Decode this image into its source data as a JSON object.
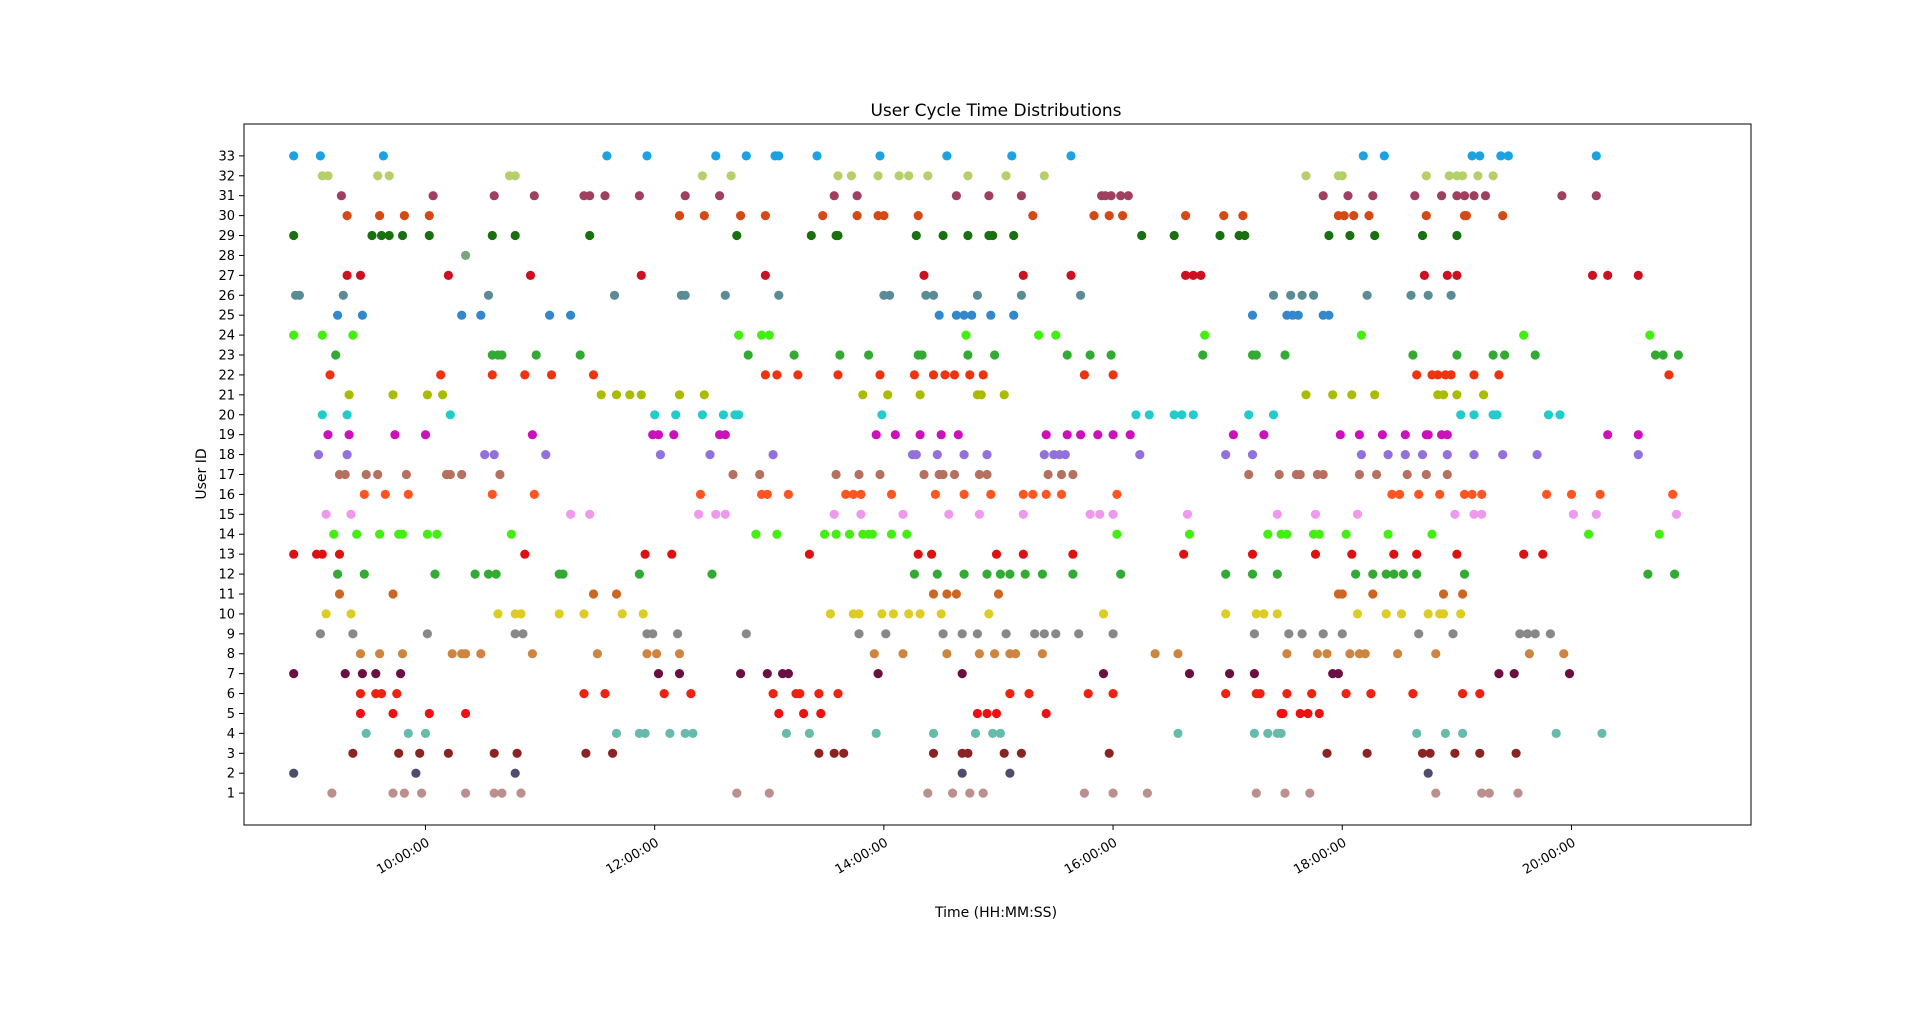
{
  "chart_data": {
    "type": "scatter",
    "title": "User Cycle Time Distributions",
    "xlabel": "Time (HH:MM:SS)",
    "ylabel": "User ID",
    "x_ticks": [
      "10:00:00",
      "12:00:00",
      "14:00:00",
      "16:00:00",
      "18:00:00",
      "20:00:00"
    ],
    "xlim": [
      "08:25:00",
      "21:34:00"
    ],
    "ylim": [
      -0.6,
      34.6
    ],
    "y_ticks": [
      1,
      2,
      3,
      4,
      5,
      6,
      7,
      8,
      9,
      10,
      11,
      12,
      13,
      14,
      15,
      16,
      17,
      18,
      19,
      20,
      21,
      22,
      23,
      24,
      25,
      26,
      27,
      28,
      29,
      30,
      31,
      32,
      33
    ],
    "grid": false,
    "legend": "none",
    "series": [
      {
        "user": 1,
        "color": "#bc8f8f",
        "times": [
          "09:11",
          "09:43",
          "09:49",
          "09:58",
          "10:21",
          "10:36",
          "10:40",
          "10:50",
          "12:43",
          "13:00",
          "14:23",
          "14:36",
          "14:45",
          "14:52",
          "15:45",
          "16:00",
          "16:18",
          "17:15",
          "17:30",
          "17:43",
          "18:49",
          "19:13",
          "19:17",
          "19:32"
        ]
      },
      {
        "user": 2,
        "color": "#4d4d6d",
        "times": [
          "08:51",
          "09:55",
          "10:47",
          "14:41",
          "15:06",
          "18:45"
        ]
      },
      {
        "user": 3,
        "color": "#8b2323",
        "times": [
          "09:22",
          "09:46",
          "09:57",
          "10:12",
          "10:36",
          "10:48",
          "11:24",
          "11:38",
          "13:26",
          "13:34",
          "13:39",
          "14:26",
          "14:41",
          "14:44",
          "15:03",
          "15:12",
          "15:58",
          "17:52",
          "18:13",
          "18:42",
          "18:46",
          "18:59",
          "19:12",
          "19:31"
        ]
      },
      {
        "user": 4,
        "color": "#66bbaa",
        "times": [
          "09:29",
          "09:51",
          "10:00",
          "11:40",
          "11:52",
          "11:55",
          "12:08",
          "12:16",
          "12:20",
          "13:09",
          "13:21",
          "13:56",
          "14:26",
          "14:48",
          "14:57",
          "15:01",
          "16:34",
          "17:14",
          "17:21",
          "17:26",
          "17:28",
          "18:39",
          "18:54",
          "19:03",
          "19:52",
          "20:16"
        ]
      },
      {
        "user": 5,
        "color": "#ee1111",
        "times": [
          "09:26",
          "09:43",
          "10:02",
          "10:21",
          "13:05",
          "13:18",
          "13:27",
          "14:49",
          "14:54",
          "14:59",
          "15:25",
          "17:28",
          "17:29",
          "17:38",
          "17:42",
          "17:48"
        ]
      },
      {
        "user": 6,
        "color": "#ee2211",
        "times": [
          "09:26",
          "09:34",
          "09:37",
          "09:45",
          "11:23",
          "11:34",
          "12:05",
          "12:19",
          "13:02",
          "13:14",
          "13:16",
          "13:26",
          "13:36",
          "15:06",
          "15:16",
          "15:47",
          "16:00",
          "16:59",
          "17:15",
          "17:17",
          "17:31",
          "17:44",
          "18:02",
          "18:15",
          "18:37",
          "19:03",
          "19:12"
        ]
      },
      {
        "user": 7,
        "color": "#6a1040",
        "times": [
          "08:51",
          "09:18",
          "09:27",
          "09:34",
          "09:47",
          "12:02",
          "12:13",
          "12:45",
          "12:59",
          "13:07",
          "13:10",
          "13:57",
          "14:41",
          "15:55",
          "16:40",
          "17:01",
          "17:14",
          "17:55",
          "17:58",
          "19:22",
          "19:30",
          "19:59"
        ]
      },
      {
        "user": 8,
        "color": "#cd853f",
        "times": [
          "09:26",
          "09:36",
          "09:48",
          "10:14",
          "10:19",
          "10:21",
          "10:29",
          "10:56",
          "11:30",
          "11:56",
          "12:01",
          "12:13",
          "13:55",
          "14:10",
          "14:33",
          "14:50",
          "14:58",
          "15:06",
          "15:09",
          "15:23",
          "16:22",
          "16:34",
          "17:31",
          "17:47",
          "17:52",
          "18:04",
          "18:09",
          "18:12",
          "18:29",
          "18:49",
          "19:38",
          "19:56"
        ]
      },
      {
        "user": 9,
        "color": "#888888",
        "times": [
          "09:05",
          "09:22",
          "10:01",
          "10:47",
          "10:51",
          "11:56",
          "11:59",
          "12:12",
          "12:48",
          "13:47",
          "14:01",
          "14:31",
          "14:41",
          "14:49",
          "15:04",
          "15:19",
          "15:24",
          "15:30",
          "15:42",
          "16:00",
          "17:14",
          "17:32",
          "17:39",
          "17:50",
          "18:00",
          "18:40",
          "18:58",
          "19:33",
          "19:37",
          "19:41",
          "19:49"
        ]
      },
      {
        "user": 10,
        "color": "#ddcc22",
        "times": [
          "09:08",
          "09:21",
          "10:38",
          "10:47",
          "10:50",
          "11:10",
          "11:23",
          "11:43",
          "11:54",
          "13:32",
          "13:44",
          "13:47",
          "13:59",
          "14:05",
          "14:13",
          "14:19",
          "14:30",
          "14:55",
          "15:55",
          "16:59",
          "17:15",
          "17:19",
          "17:26",
          "18:08",
          "18:23",
          "18:31",
          "18:45",
          "18:51",
          "18:53",
          "19:02"
        ]
      },
      {
        "user": 11,
        "color": "#cc6622",
        "times": [
          "09:15",
          "09:43",
          "11:28",
          "11:40",
          "14:26",
          "14:33",
          "14:38",
          "15:00",
          "17:58",
          "18:00",
          "18:16",
          "18:53",
          "19:03"
        ]
      },
      {
        "user": 12,
        "color": "#33aa33",
        "times": [
          "09:14",
          "09:28",
          "10:05",
          "10:26",
          "10:33",
          "10:37",
          "11:10",
          "11:12",
          "11:52",
          "12:30",
          "14:16",
          "14:28",
          "14:42",
          "14:54",
          "15:01",
          "15:06",
          "15:14",
          "15:23",
          "15:39",
          "16:04",
          "16:59",
          "17:13",
          "17:26",
          "18:07",
          "18:16",
          "18:23",
          "18:27",
          "18:32",
          "18:39",
          "19:04",
          "20:40",
          "20:54"
        ]
      },
      {
        "user": 13,
        "color": "#dd1111",
        "times": [
          "08:51",
          "09:03",
          "09:06",
          "09:15",
          "10:52",
          "11:55",
          "12:09",
          "13:21",
          "14:18",
          "14:25",
          "14:59",
          "15:13",
          "15:39",
          "16:37",
          "17:13",
          "17:46",
          "18:05",
          "18:27",
          "18:39",
          "19:00",
          "19:35",
          "19:45"
        ]
      },
      {
        "user": 14,
        "color": "#44ee11",
        "times": [
          "09:12",
          "09:24",
          "09:36",
          "09:46",
          "09:48",
          "10:01",
          "10:06",
          "10:45",
          "12:53",
          "13:04",
          "13:29",
          "13:35",
          "13:42",
          "13:49",
          "13:52",
          "13:54",
          "14:04",
          "14:12",
          "16:02",
          "16:40",
          "17:21",
          "17:28",
          "17:31",
          "17:45",
          "17:48",
          "18:02",
          "18:24",
          "18:47",
          "20:09",
          "20:46"
        ]
      },
      {
        "user": 15,
        "color": "#ee99ee",
        "times": [
          "09:08",
          "09:21",
          "11:16",
          "11:26",
          "12:23",
          "12:32",
          "12:37",
          "13:34",
          "13:48",
          "14:10",
          "14:34",
          "14:50",
          "15:13",
          "15:48",
          "15:53",
          "16:00",
          "16:39",
          "17:26",
          "17:46",
          "18:08",
          "18:59",
          "19:09",
          "19:13",
          "20:01",
          "20:13",
          "20:55"
        ]
      },
      {
        "user": 16,
        "color": "#ff5522",
        "times": [
          "09:28",
          "09:39",
          "09:51",
          "10:35",
          "10:57",
          "12:24",
          "12:56",
          "12:59",
          "13:10",
          "13:40",
          "13:44",
          "13:48",
          "14:04",
          "14:27",
          "14:42",
          "14:56",
          "15:13",
          "15:18",
          "15:25",
          "15:33",
          "16:02",
          "18:26",
          "18:30",
          "18:40",
          "18:51",
          "19:04",
          "19:08",
          "19:13",
          "19:47",
          "20:00",
          "20:15",
          "20:53"
        ]
      },
      {
        "user": 17,
        "color": "#b57060",
        "times": [
          "09:15",
          "09:18",
          "09:29",
          "09:35",
          "09:50",
          "10:11",
          "10:13",
          "10:19",
          "10:39",
          "12:41",
          "12:55",
          "13:35",
          "13:47",
          "13:58",
          "14:21",
          "14:29",
          "14:31",
          "14:37",
          "14:50",
          "14:54",
          "15:26",
          "15:33",
          "15:39",
          "17:11",
          "17:27",
          "17:36",
          "17:38",
          "17:47",
          "17:50",
          "18:09",
          "18:18",
          "18:34",
          "18:44",
          "18:55"
        ]
      },
      {
        "user": 18,
        "color": "#9370db",
        "times": [
          "09:04",
          "09:19",
          "10:31",
          "10:36",
          "11:03",
          "12:03",
          "12:29",
          "13:02",
          "14:15",
          "14:17",
          "14:28",
          "14:42",
          "14:54",
          "15:24",
          "15:29",
          "15:32",
          "15:35",
          "16:14",
          "16:59",
          "17:13",
          "18:10",
          "18:24",
          "18:33",
          "18:42",
          "18:55",
          "19:09",
          "19:24",
          "19:42",
          "20:35"
        ]
      },
      {
        "user": 19,
        "color": "#cc11bb",
        "times": [
          "09:09",
          "09:20",
          "09:44",
          "10:00",
          "10:56",
          "11:59",
          "12:02",
          "12:10",
          "12:34",
          "12:37",
          "13:56",
          "14:06",
          "14:19",
          "14:30",
          "14:39",
          "15:25",
          "15:36",
          "15:43",
          "15:52",
          "16:00",
          "16:09",
          "17:03",
          "17:19",
          "17:59",
          "18:09",
          "18:21",
          "18:33",
          "18:44",
          "18:45",
          "18:52",
          "18:55",
          "20:19",
          "20:35"
        ]
      },
      {
        "user": 20,
        "color": "#22cccc",
        "times": [
          "09:06",
          "09:19",
          "10:13",
          "12:00",
          "12:11",
          "12:25",
          "12:36",
          "12:42",
          "12:44",
          "13:59",
          "16:12",
          "16:19",
          "16:32",
          "16:36",
          "16:42",
          "17:11",
          "17:24",
          "19:02",
          "19:09",
          "19:19",
          "19:21",
          "19:48",
          "19:54"
        ]
      },
      {
        "user": 21,
        "color": "#aabb00",
        "times": [
          "09:20",
          "09:43",
          "10:01",
          "10:09",
          "11:32",
          "11:40",
          "11:47",
          "11:53",
          "12:13",
          "12:26",
          "13:49",
          "14:02",
          "14:19",
          "14:49",
          "14:51",
          "15:03",
          "17:41",
          "17:55",
          "18:05",
          "18:17",
          "18:50",
          "18:53",
          "19:00",
          "19:14"
        ]
      },
      {
        "user": 22,
        "color": "#ee3311",
        "times": [
          "09:10",
          "10:08",
          "10:35",
          "10:52",
          "11:06",
          "11:28",
          "12:58",
          "13:04",
          "13:15",
          "13:36",
          "13:58",
          "14:16",
          "14:26",
          "14:32",
          "14:37",
          "14:45",
          "14:52",
          "15:45",
          "16:00",
          "18:39",
          "18:47",
          "18:50",
          "18:54",
          "18:57",
          "19:09",
          "19:22",
          "20:51"
        ]
      },
      {
        "user": 23,
        "color": "#33aa33",
        "times": [
          "09:13",
          "10:35",
          "10:38",
          "10:40",
          "10:58",
          "11:21",
          "12:49",
          "13:13",
          "13:37",
          "13:52",
          "14:18",
          "14:20",
          "14:44",
          "14:58",
          "15:36",
          "15:48",
          "15:59",
          "16:47",
          "17:13",
          "17:15",
          "17:30",
          "18:37",
          "19:00",
          "19:19",
          "19:25",
          "19:41",
          "20:44",
          "20:48",
          "20:56"
        ]
      },
      {
        "user": 24,
        "color": "#44ee11",
        "times": [
          "08:51",
          "09:06",
          "09:22",
          "12:44",
          "12:56",
          "13:00",
          "14:43",
          "15:21",
          "15:30",
          "16:48",
          "18:10",
          "19:35",
          "20:41"
        ]
      },
      {
        "user": 25,
        "color": "#3388cc",
        "times": [
          "09:14",
          "09:27",
          "10:19",
          "10:29",
          "11:05",
          "11:16",
          "14:29",
          "14:38",
          "14:42",
          "14:46",
          "14:56",
          "15:08",
          "17:13",
          "17:31",
          "17:34",
          "17:37",
          "17:50",
          "17:53"
        ]
      },
      {
        "user": 26,
        "color": "#5b8c96",
        "times": [
          "08:52",
          "08:54",
          "09:17",
          "10:33",
          "11:39",
          "12:14",
          "12:16",
          "12:37",
          "13:05",
          "14:00",
          "14:03",
          "14:22",
          "14:26",
          "14:49",
          "15:12",
          "15:43",
          "17:24",
          "17:33",
          "17:39",
          "17:45",
          "18:13",
          "18:36",
          "18:45",
          "18:57"
        ]
      },
      {
        "user": 27,
        "color": "#cc1122",
        "times": [
          "09:19",
          "09:26",
          "10:12",
          "10:55",
          "11:53",
          "12:58",
          "14:21",
          "15:13",
          "15:38",
          "16:38",
          "16:42",
          "16:46",
          "18:43",
          "18:55",
          "19:00",
          "20:11",
          "20:19",
          "20:35"
        ]
      },
      {
        "user": 28,
        "color": "#7aa87a",
        "times": [
          "10:21"
        ]
      },
      {
        "user": 29,
        "color": "#1a7010",
        "times": [
          "08:51",
          "09:32",
          "09:37",
          "09:41",
          "09:48",
          "10:02",
          "10:35",
          "10:47",
          "11:26",
          "12:43",
          "13:22",
          "13:35",
          "13:36",
          "14:17",
          "14:31",
          "14:44",
          "14:55",
          "14:57",
          "15:08",
          "16:15",
          "16:32",
          "16:56",
          "17:06",
          "17:09",
          "17:53",
          "18:04",
          "18:17",
          "18:42",
          "19:00"
        ]
      },
      {
        "user": 30,
        "color": "#d44a16",
        "times": [
          "09:19",
          "09:36",
          "09:49",
          "10:02",
          "12:13",
          "12:26",
          "12:45",
          "12:58",
          "13:28",
          "13:46",
          "13:57",
          "14:00",
          "14:18",
          "15:18",
          "15:50",
          "15:58",
          "16:05",
          "16:38",
          "16:58",
          "17:08",
          "17:58",
          "18:01",
          "18:06",
          "18:14",
          "18:44",
          "19:04",
          "19:05",
          "19:24"
        ]
      },
      {
        "user": 31,
        "color": "#a04060",
        "times": [
          "09:16",
          "10:04",
          "10:36",
          "10:57",
          "11:23",
          "11:26",
          "11:34",
          "11:52",
          "12:16",
          "12:34",
          "13:34",
          "13:46",
          "14:38",
          "14:55",
          "15:12",
          "15:54",
          "15:56",
          "15:59",
          "16:04",
          "16:08",
          "17:50",
          "18:03",
          "18:16",
          "18:38",
          "18:52",
          "19:00",
          "19:04",
          "19:09",
          "19:15",
          "19:55",
          "20:13"
        ]
      },
      {
        "user": 32,
        "color": "#b5d06a",
        "times": [
          "09:06",
          "09:09",
          "09:35",
          "09:41",
          "10:44",
          "10:47",
          "12:25",
          "12:40",
          "13:36",
          "13:43",
          "13:57",
          "14:08",
          "14:13",
          "14:23",
          "14:44",
          "15:04",
          "15:24",
          "17:41",
          "17:58",
          "18:00",
          "18:44",
          "18:56",
          "19:00",
          "19:03",
          "19:11",
          "19:19"
        ]
      },
      {
        "user": 33,
        "color": "#1aa3e0",
        "times": [
          "08:51",
          "09:05",
          "09:38",
          "11:35",
          "11:56",
          "12:32",
          "12:48",
          "13:03",
          "13:05",
          "13:25",
          "13:58",
          "14:33",
          "15:07",
          "15:38",
          "18:11",
          "18:22",
          "19:08",
          "19:12",
          "19:23",
          "19:27",
          "20:13"
        ]
      }
    ]
  }
}
